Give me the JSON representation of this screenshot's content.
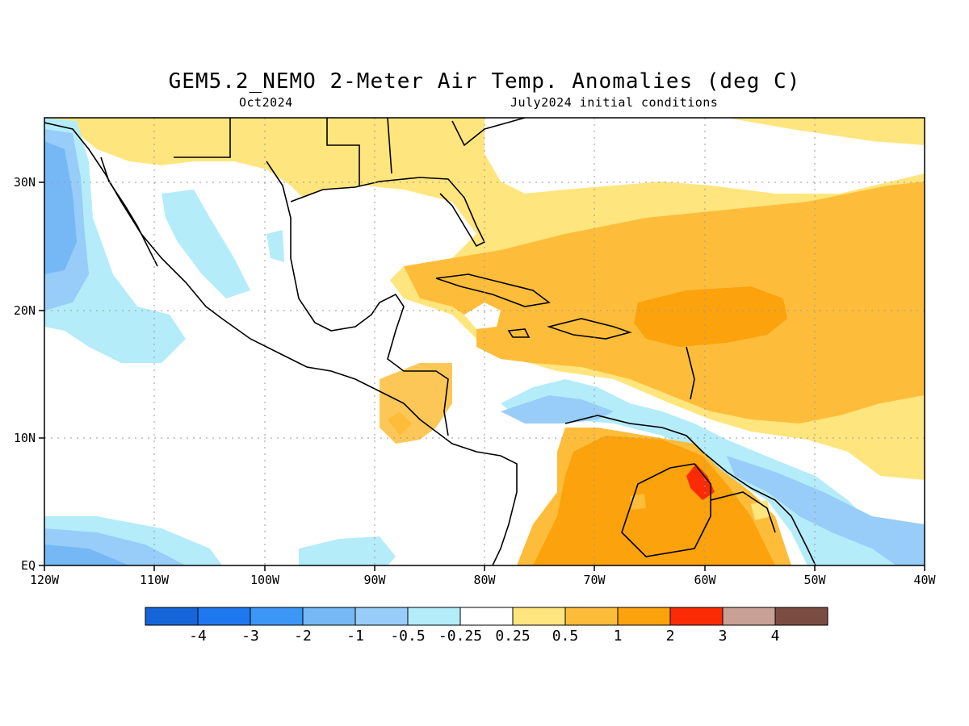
{
  "title": "GEM5.2_NEMO 2-Meter Air Temp. Anomalies (deg C)",
  "subtitle_left": "Oct2024",
  "subtitle_right": "July2024 initial conditions",
  "map": {
    "lon_ticks": [
      "120W",
      "110W",
      "100W",
      "90W",
      "80W",
      "70W",
      "60W",
      "50W",
      "40W"
    ],
    "lat_ticks": [
      "EQ",
      "10N",
      "20N",
      "30N"
    ],
    "extent": {
      "lon": [
        -120,
        -40
      ],
      "lat": [
        0,
        35
      ]
    }
  },
  "colorbar": {
    "colors": [
      "#1565d8",
      "#1f78f0",
      "#3b96f5",
      "#75b8f5",
      "#97cdf8",
      "#b4ecfa",
      "#ffffff",
      "#ffe57d",
      "#fdbd3a",
      "#fba20c",
      "#fb2c05",
      "#c9a096",
      "#7b4d42"
    ],
    "labels": [
      "-4",
      "-3",
      "-2",
      "-1",
      "-0.5",
      "-0.25",
      "0.25",
      "0.5",
      "1",
      "2",
      "3",
      "4"
    ]
  },
  "colors": {
    "land_outline": "#000000",
    "grid": "#9a9a9a"
  }
}
